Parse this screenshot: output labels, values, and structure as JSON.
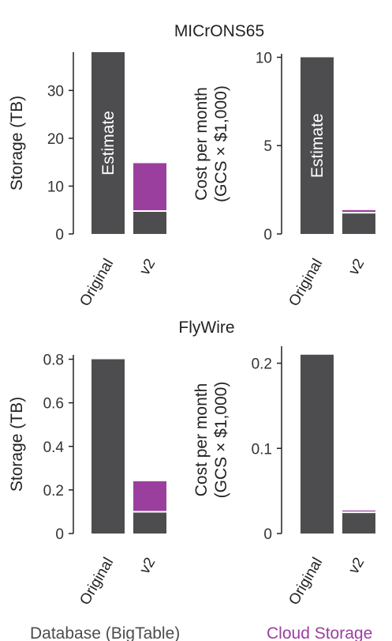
{
  "colors": {
    "database": "#4d4d4f",
    "cloud_storage": "#9b3f9f",
    "axis": "#222222",
    "text": "#222222",
    "divider": "#ffffff"
  },
  "legend": {
    "database": "Database (BigTable)",
    "cloud_storage": "Cloud Storage"
  },
  "chart_data": [
    {
      "type": "bar",
      "stacked": true,
      "group_title": "MICrONS65",
      "ylabel": "Storage (TB)",
      "ylim": [
        0,
        38
      ],
      "yticks": [
        0,
        10,
        20,
        30
      ],
      "categories": [
        "Original",
        "v2"
      ],
      "series": [
        {
          "name": "Database (BigTable)",
          "values": [
            38,
            4.8
          ]
        },
        {
          "name": "Cloud Storage",
          "values": [
            0,
            10
          ]
        }
      ],
      "bar_labels": [
        "Estimate",
        ""
      ]
    },
    {
      "type": "bar",
      "stacked": true,
      "group_title": "",
      "ylabel": "Cost per month (GCS × $1,000)",
      "ylabel_lines": [
        "Cost per month",
        "(GCS × $1,000)"
      ],
      "ylim": [
        0,
        10.2
      ],
      "yticks": [
        0,
        5,
        10
      ],
      "categories": [
        "Original",
        "v2"
      ],
      "series": [
        {
          "name": "Database (BigTable)",
          "values": [
            10,
            1.2
          ]
        },
        {
          "name": "Cloud Storage",
          "values": [
            0,
            0.15
          ]
        }
      ],
      "bar_labels": [
        "Estimate",
        ""
      ]
    },
    {
      "type": "bar",
      "stacked": true,
      "group_title": "FlyWire",
      "ylabel": "Storage (TB)",
      "ylim": [
        0,
        0.82
      ],
      "yticks": [
        0,
        0.2,
        0.4,
        0.6,
        0.8
      ],
      "ytick_labels": [
        "0",
        "0.2",
        "0.4",
        "0.6",
        "0.8"
      ],
      "categories": [
        "Original",
        "v2"
      ],
      "series": [
        {
          "name": "Database (BigTable)",
          "values": [
            0.8,
            0.1
          ]
        },
        {
          "name": "Cloud Storage",
          "values": [
            0,
            0.14
          ]
        }
      ],
      "bar_labels": [
        "",
        ""
      ]
    },
    {
      "type": "bar",
      "stacked": true,
      "group_title": "",
      "ylabel": "Cost per month (GCS × $1,000)",
      "ylabel_lines": [
        "Cost per month",
        "(GCS × $1,000)"
      ],
      "ylim": [
        0,
        0.22
      ],
      "yticks": [
        0,
        0.1,
        0.2
      ],
      "ytick_labels": [
        "0",
        "0.1",
        "0.2"
      ],
      "categories": [
        "Original",
        "v2"
      ],
      "series": [
        {
          "name": "Database (BigTable)",
          "values": [
            0.21,
            0.025
          ]
        },
        {
          "name": "Cloud Storage",
          "values": [
            0,
            0.002
          ]
        }
      ],
      "bar_labels": [
        "",
        ""
      ]
    }
  ]
}
